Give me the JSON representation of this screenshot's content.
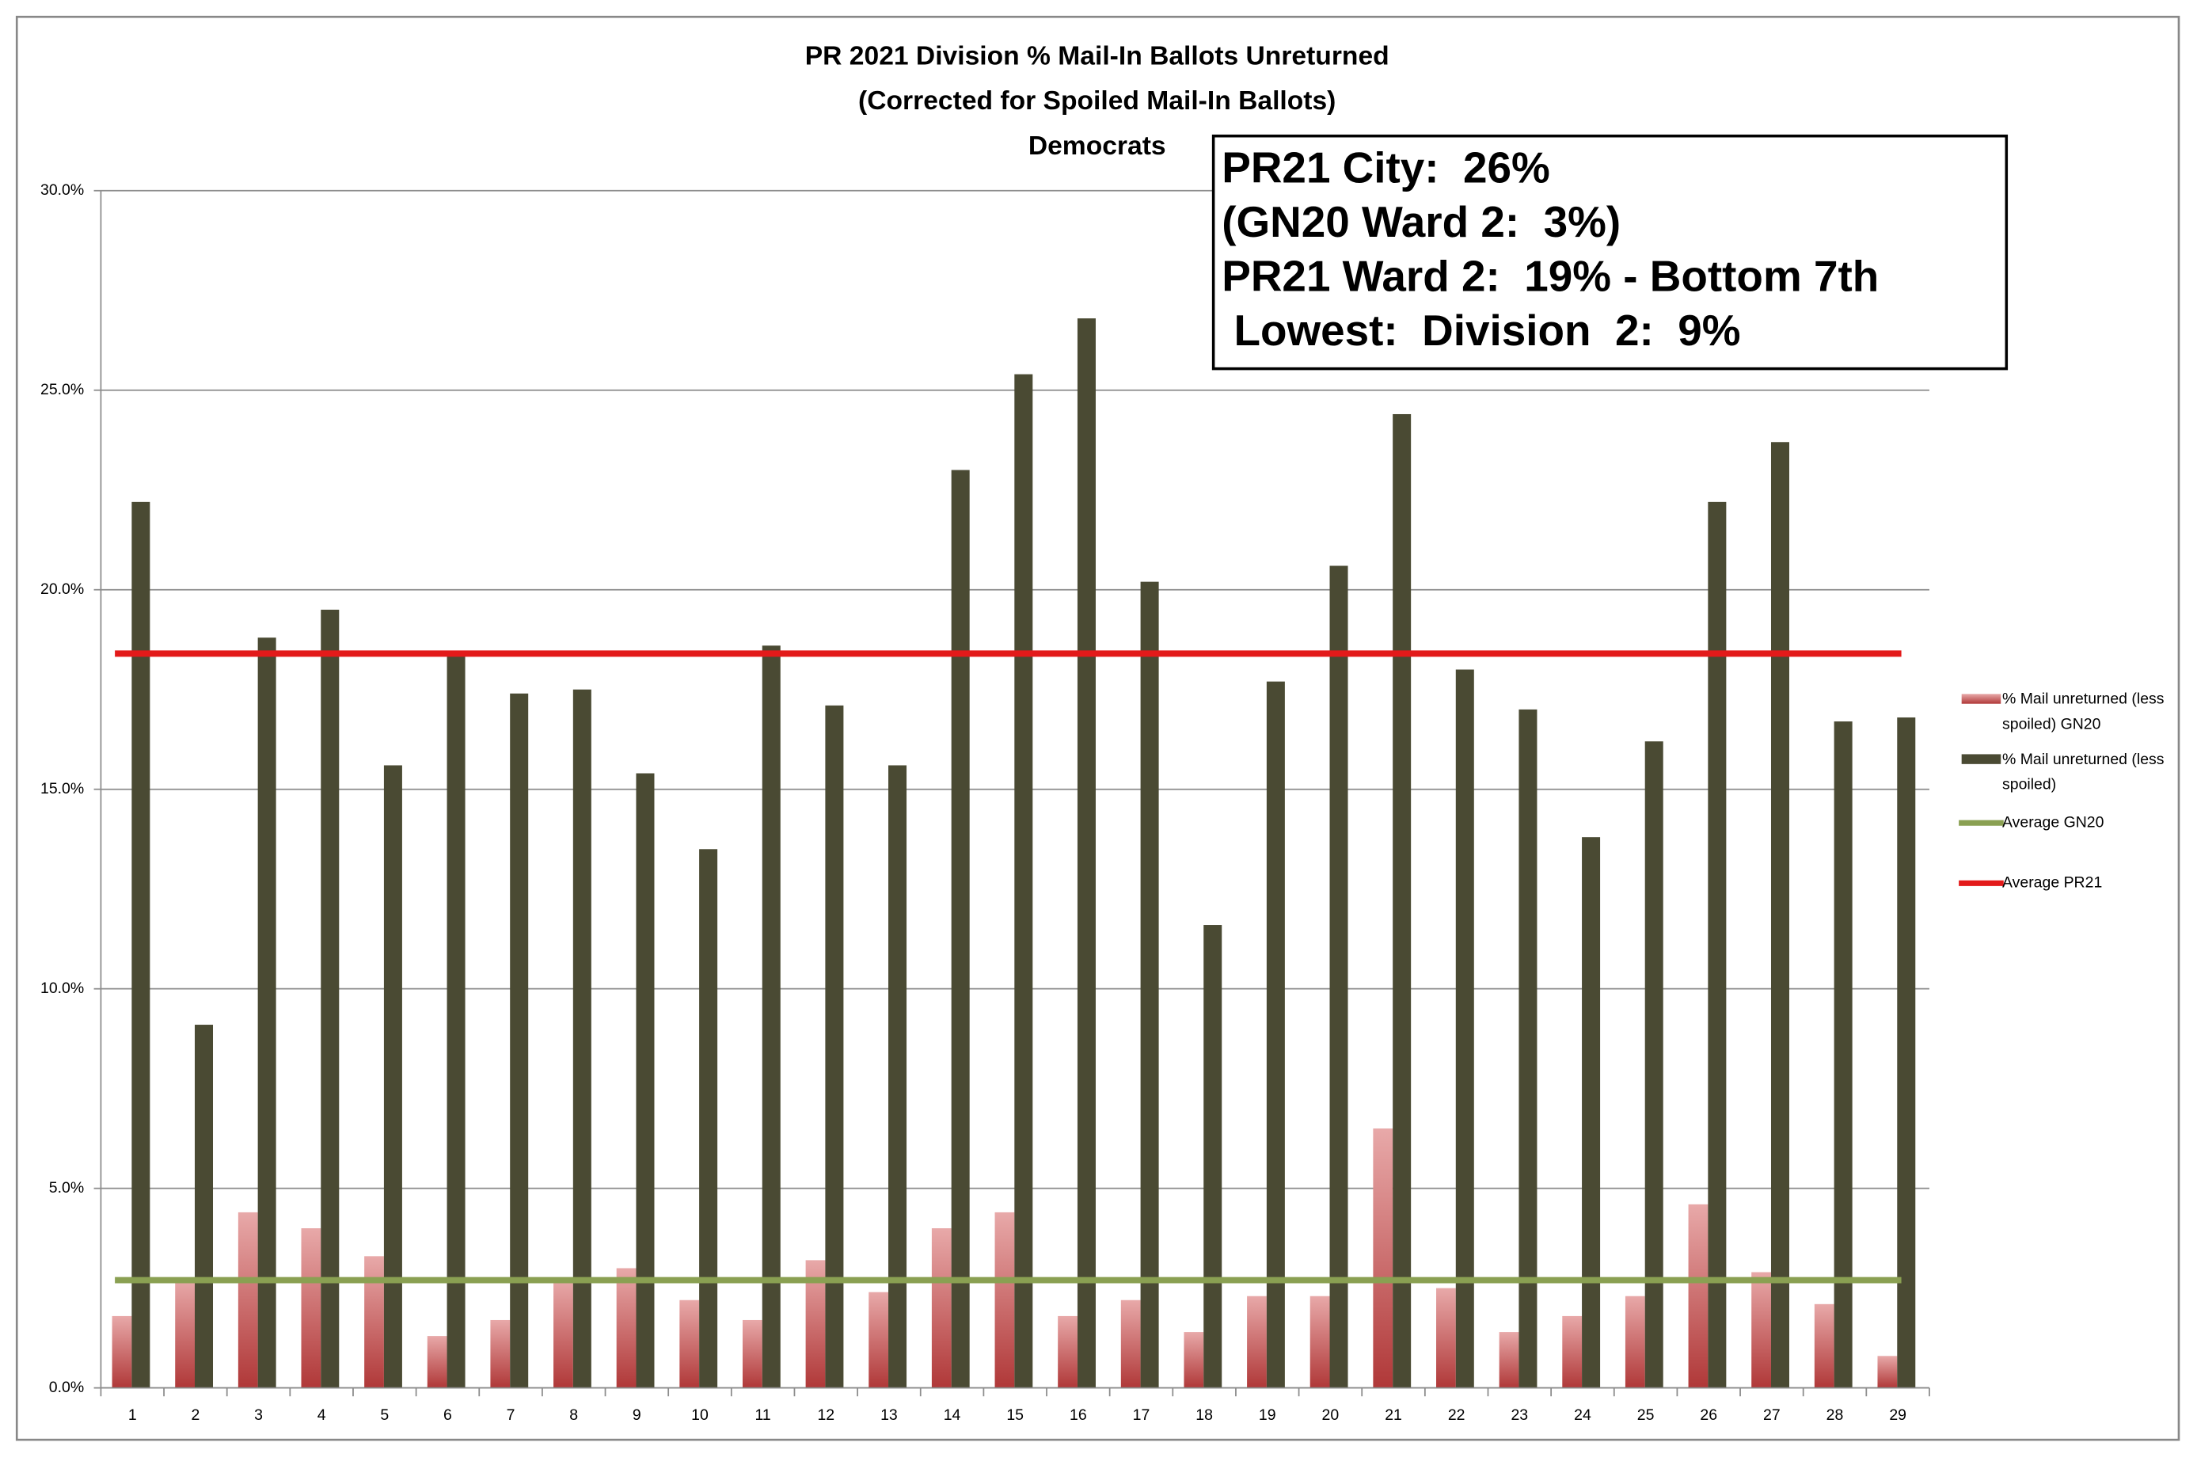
{
  "chart_data": {
    "type": "bar",
    "title": "PR 2021 Division % Mail-In Ballots Unreturned",
    "subtitle": "(Corrected for Spoiled Mail-In Ballots)",
    "subtitle2": "Democrats",
    "annotations": [
      "PR21 City:  26%",
      "(GN20 Ward 2:  3%)",
      "PR21 Ward 2:  19% - Bottom 7th",
      " Lowest:  Division  2:  9%"
    ],
    "categories": [
      1,
      2,
      3,
      4,
      5,
      6,
      7,
      8,
      9,
      10,
      11,
      12,
      13,
      14,
      15,
      16,
      17,
      18,
      19,
      20,
      21,
      22,
      23,
      24,
      25,
      26,
      27,
      28,
      29
    ],
    "series": [
      {
        "name": "% Mail unreturned (less spoiled) GN20",
        "color": "#e8a9a9",
        "values": [
          1.8,
          2.7,
          4.4,
          4.0,
          3.3,
          1.3,
          1.7,
          2.7,
          3.0,
          2.2,
          1.7,
          3.2,
          2.4,
          4.0,
          4.4,
          1.8,
          2.2,
          1.4,
          2.3,
          2.3,
          6.5,
          2.5,
          1.4,
          1.8,
          2.3,
          4.6,
          2.9,
          2.1,
          0.8
        ]
      },
      {
        "name": "% Mail unreturned (less spoiled)",
        "color": "#4a4a33",
        "values": [
          22.2,
          9.1,
          18.8,
          19.5,
          15.6,
          18.4,
          17.4,
          17.5,
          15.4,
          13.5,
          18.6,
          17.1,
          15.6,
          23.0,
          25.4,
          26.8,
          20.2,
          11.6,
          17.7,
          20.6,
          24.4,
          18.0,
          17.0,
          13.8,
          16.2,
          22.2,
          23.7,
          16.7,
          16.8
        ]
      }
    ],
    "reference_lines": [
      {
        "name": "Average GN20",
        "color": "#8aa052",
        "value": 2.7
      },
      {
        "name": "Average PR21",
        "color": "#e31a1a",
        "value": 18.4
      }
    ],
    "ylim": [
      0,
      30
    ],
    "yticks": [
      {
        "value": 0,
        "label": "0.0%"
      },
      {
        "value": 5,
        "label": "5.0%"
      },
      {
        "value": 10,
        "label": "10.0%"
      },
      {
        "value": 15,
        "label": "15.0%"
      },
      {
        "value": 20,
        "label": "20.0%"
      },
      {
        "value": 25,
        "label": "25.0%"
      },
      {
        "value": 30,
        "label": "30.0%"
      }
    ],
    "grid": true
  }
}
